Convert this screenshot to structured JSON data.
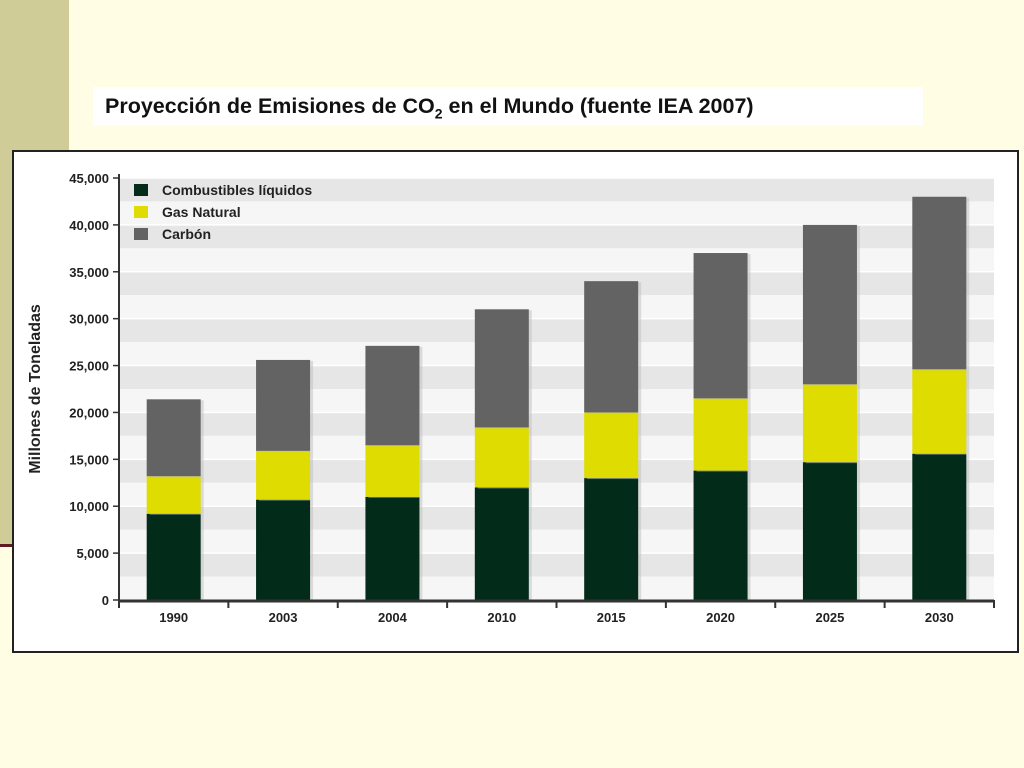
{
  "title": {
    "main": "Proyección de Emisiones de CO",
    "subscript": "2",
    "rest": " en el Mundo (fuente IEA 2007)"
  },
  "colors": {
    "liquidos": "#032b1a",
    "gas": "#dedc00",
    "carbon": "#636363",
    "background": "#fffde3",
    "side_band": "#cfcc97"
  },
  "chart_data": {
    "type": "bar",
    "stacked": true,
    "categories": [
      "1990",
      "2003",
      "2004",
      "2010",
      "2015",
      "2020",
      "2025",
      "2030"
    ],
    "series": [
      {
        "name": "Combustibles líquidos",
        "color": "#032b1a",
        "values": [
          9200,
          10700,
          11000,
          12000,
          13000,
          13800,
          14700,
          15600
        ]
      },
      {
        "name": "Gas Natural",
        "color": "#dedc00",
        "values": [
          4000,
          5200,
          5500,
          6400,
          7000,
          7700,
          8300,
          9000
        ]
      },
      {
        "name": "Carbón",
        "color": "#636363",
        "values": [
          8200,
          9700,
          10600,
          12600,
          14000,
          15500,
          17000,
          18400
        ]
      }
    ],
    "ylabel": "Millones de Toneladas",
    "ylim": [
      0,
      45000
    ],
    "yticks": [
      0,
      5000,
      10000,
      15000,
      20000,
      25000,
      30000,
      35000,
      40000,
      45000
    ],
    "ytick_labels": [
      "0",
      "5,000",
      "10,000",
      "15,000",
      "20,000",
      "25,000",
      "30,000",
      "35,000",
      "40,000",
      "45,000"
    ],
    "grid": "horizontal, alternating bands",
    "legend_position": "top-left"
  }
}
